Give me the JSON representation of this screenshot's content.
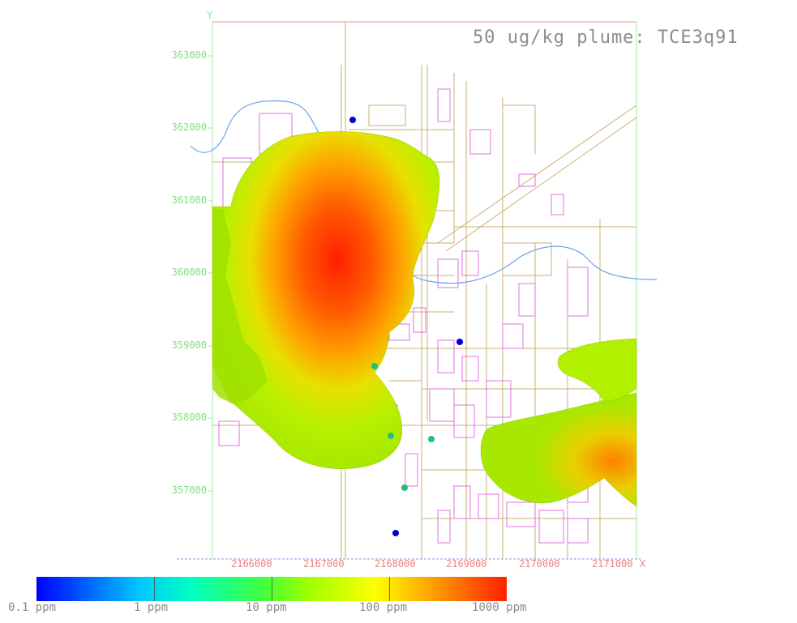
{
  "title": "50 ug/kg plume: TCE3q91",
  "axes": {
    "y_letter": "Y",
    "x_letter": "X",
    "y_ticks": [
      "363000",
      "362000",
      "361000",
      "360000",
      "359000",
      "358000",
      "357000"
    ],
    "x_ticks": [
      "2166000",
      "2167000",
      "2168000",
      "2169000",
      "2170000",
      "2171000"
    ]
  },
  "legend": {
    "labels": [
      "0.1 ppm",
      "1 ppm",
      "10 ppm",
      "100 ppm",
      "1000 ppm"
    ],
    "colors": [
      "#0000ff",
      "#00c8ff",
      "#00ffc0",
      "#40ff40",
      "#a0ff00",
      "#ffff00",
      "#ff9900",
      "#ff2000"
    ]
  },
  "colors": {
    "axis_y": "#8fe88f",
    "axis_x": "#f08080",
    "roads": "#c8b070",
    "buildings": "#e070e0",
    "river": "#6ea0f0",
    "plume_low": "#b8ff00",
    "plume_high": "#ff3000"
  },
  "wells": [
    {
      "color": "#0000cc"
    },
    {
      "color": "#0000cc"
    },
    {
      "color": "#0000cc"
    },
    {
      "color": "#20c080"
    },
    {
      "color": "#20c080"
    },
    {
      "color": "#20c080"
    },
    {
      "color": "#20c080"
    }
  ]
}
